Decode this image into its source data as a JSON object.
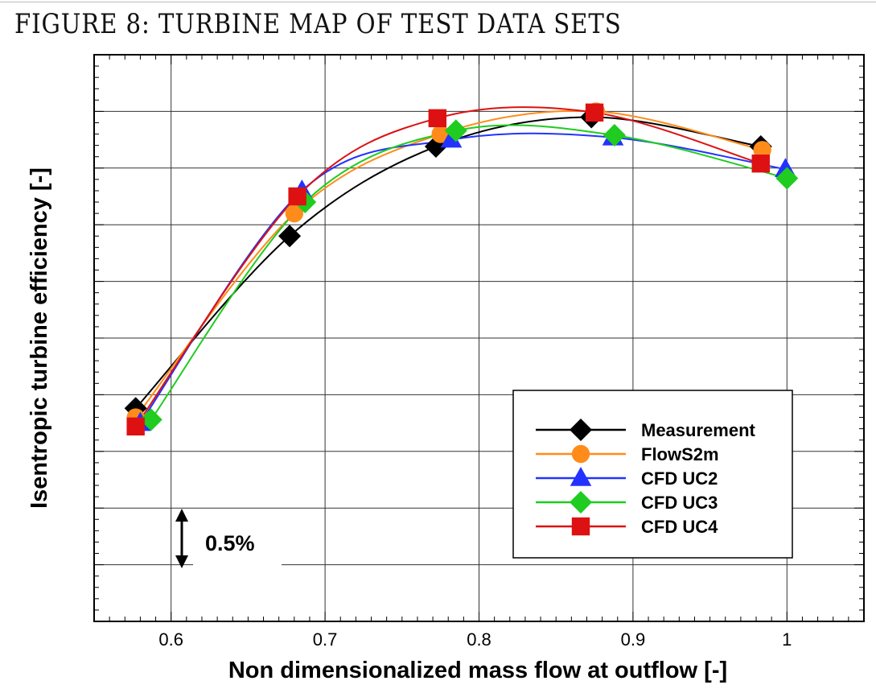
{
  "figure_title": "FIGURE 8: TURBINE MAP OF TEST DATA SETS",
  "chart_data": {
    "type": "line",
    "title": "",
    "xlabel": "Non dimensionalized mass flow at outflow [-]",
    "ylabel": "Isentropic turbine efficiency [-]",
    "xlim": [
      0.55,
      1.05
    ],
    "ylim": [
      0,
      5
    ],
    "y_units": "percentage points relative to chart bottom (0.5% per gridline)",
    "x_ticks": [
      0.6,
      0.7,
      0.8,
      0.9,
      1.0
    ],
    "x_tick_labels": [
      "0.6",
      "0.7",
      "0.8",
      "0.9",
      "1"
    ],
    "y_gridlines": [
      0.5,
      1.0,
      1.5,
      2.0,
      2.5,
      3.0,
      3.5,
      4.0,
      4.5
    ],
    "grid": true,
    "legend_position": "bottom-right",
    "scale_annotation": "0.5%",
    "series": [
      {
        "name": "Measurement",
        "color": "#000000",
        "marker": "diamond",
        "x": [
          0.577,
          0.677,
          0.772,
          0.873,
          0.983
        ],
        "y": [
          1.88,
          3.4,
          4.19,
          4.45,
          4.19
        ]
      },
      {
        "name": "FlowS2m",
        "color": "#ff8c1a",
        "marker": "circle",
        "x": [
          0.577,
          0.68,
          0.775,
          0.876,
          0.984
        ],
        "y": [
          1.8,
          3.6,
          4.3,
          4.5,
          4.16
        ]
      },
      {
        "name": "CFD UC2",
        "color": "#2233ff",
        "marker": "triangle",
        "x": [
          0.58,
          0.685,
          0.782,
          0.887,
          0.999
        ],
        "y": [
          1.75,
          3.8,
          4.25,
          4.27,
          3.99
        ]
      },
      {
        "name": "CFD UC3",
        "color": "#1fcc1f",
        "marker": "diamond",
        "x": [
          0.587,
          0.687,
          0.785,
          0.888,
          1.0
        ],
        "y": [
          1.78,
          3.7,
          4.33,
          4.29,
          3.91
        ]
      },
      {
        "name": "CFD UC4",
        "color": "#dd1111",
        "marker": "square",
        "x": [
          0.577,
          0.682,
          0.773,
          0.875,
          0.983
        ],
        "y": [
          1.72,
          3.75,
          4.44,
          4.49,
          4.04
        ]
      }
    ]
  }
}
